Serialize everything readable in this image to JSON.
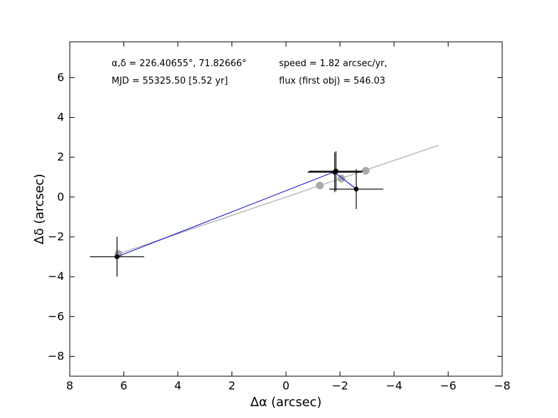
{
  "chart_data": {
    "type": "scatter",
    "xlabel": "Δα (arcsec)",
    "ylabel": "Δδ (arcsec)",
    "xlim": [
      8,
      -8
    ],
    "ylim": [
      -9,
      7.8
    ],
    "x_ticks": [
      8,
      6,
      4,
      2,
      0,
      -2,
      -4,
      -6,
      -8
    ],
    "y_ticks": [
      -8,
      -6,
      -4,
      -2,
      0,
      2,
      4,
      6
    ],
    "x_tick_labels": [
      "8",
      "6",
      "4",
      "2",
      "0",
      "−2",
      "−4",
      "−6",
      "−8"
    ],
    "y_tick_labels": [
      "−8",
      "−6",
      "−4",
      "−2",
      "0",
      "2",
      "4",
      "6"
    ],
    "grid": false,
    "annotations": {
      "coords": "α,δ = 226.40655°, 71.82666°",
      "mjd": "MJD = 55325.50 [5.52 yr]",
      "speed": "speed = 1.82 arcsec/yr,",
      "flux": "flux (first obj) = 546.03"
    },
    "series": [
      {
        "marker": "black-dot-errorbar",
        "color": "#000000",
        "line_color": "#0000cc",
        "points": [
          {
            "x": 6.25,
            "y": -3.0,
            "xerr": 1.0,
            "yerr": 1.0
          },
          {
            "x": -1.85,
            "y": 1.3,
            "xerr": 1.0,
            "yerr": 1.0
          },
          {
            "x": -1.8,
            "y": 1.25,
            "xerr": 1.0,
            "yerr": 1.0
          },
          {
            "x": -2.6,
            "y": 0.4,
            "xerr": 1.0,
            "yerr": 1.0
          }
        ]
      },
      {
        "marker": "gray-dot",
        "color": "#aaaaaa",
        "points": [
          {
            "x": 6.2,
            "y": -2.85
          },
          {
            "x": -1.25,
            "y": 0.58
          },
          {
            "x": -2.05,
            "y": 0.93
          },
          {
            "x": -2.95,
            "y": 1.32
          }
        ]
      }
    ],
    "fit_line": {
      "color": "#aaaaaa",
      "x": [
        6.3,
        -5.65
      ],
      "y": [
        -2.9,
        2.6
      ]
    }
  }
}
